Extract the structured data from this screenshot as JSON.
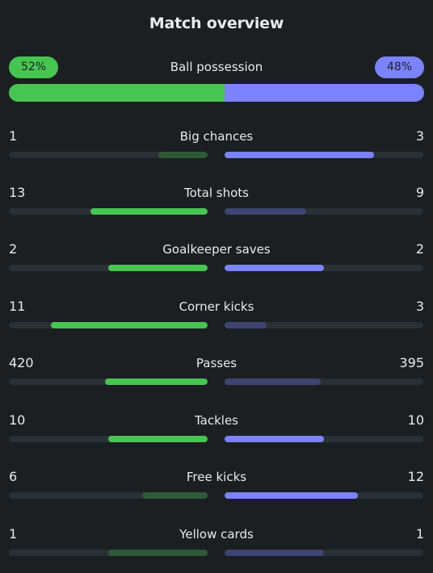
{
  "title": "Match overview",
  "colors": {
    "home": "#47c552",
    "away": "#7b83ff",
    "background": "#1b1f22"
  },
  "possession": {
    "label": "Ball possession",
    "home_label": "52%",
    "away_label": "48%",
    "home": 52,
    "away": 48
  },
  "stats": [
    {
      "label": "Big chances",
      "home": "1",
      "away": "3",
      "home_fill": 0.25,
      "away_fill": 0.75,
      "leader": "away"
    },
    {
      "label": "Total shots",
      "home": "13",
      "away": "9",
      "home_fill": 0.59,
      "away_fill": 0.41,
      "leader": "home"
    },
    {
      "label": "Goalkeeper saves",
      "home": "2",
      "away": "2",
      "home_fill": 0.5,
      "away_fill": 0.5,
      "leader": "both"
    },
    {
      "label": "Corner kicks",
      "home": "11",
      "away": "3",
      "home_fill": 0.79,
      "away_fill": 0.21,
      "leader": "home"
    },
    {
      "label": "Passes",
      "home": "420",
      "away": "395",
      "home_fill": 0.515,
      "away_fill": 0.485,
      "leader": "home"
    },
    {
      "label": "Tackles",
      "home": "10",
      "away": "10",
      "home_fill": 0.5,
      "away_fill": 0.5,
      "leader": "both"
    },
    {
      "label": "Free kicks",
      "home": "6",
      "away": "12",
      "home_fill": 0.33,
      "away_fill": 0.67,
      "leader": "away"
    },
    {
      "label": "Yellow cards",
      "home": "1",
      "away": "1",
      "home_fill": 0.5,
      "away_fill": 0.5,
      "leader": "none"
    }
  ]
}
